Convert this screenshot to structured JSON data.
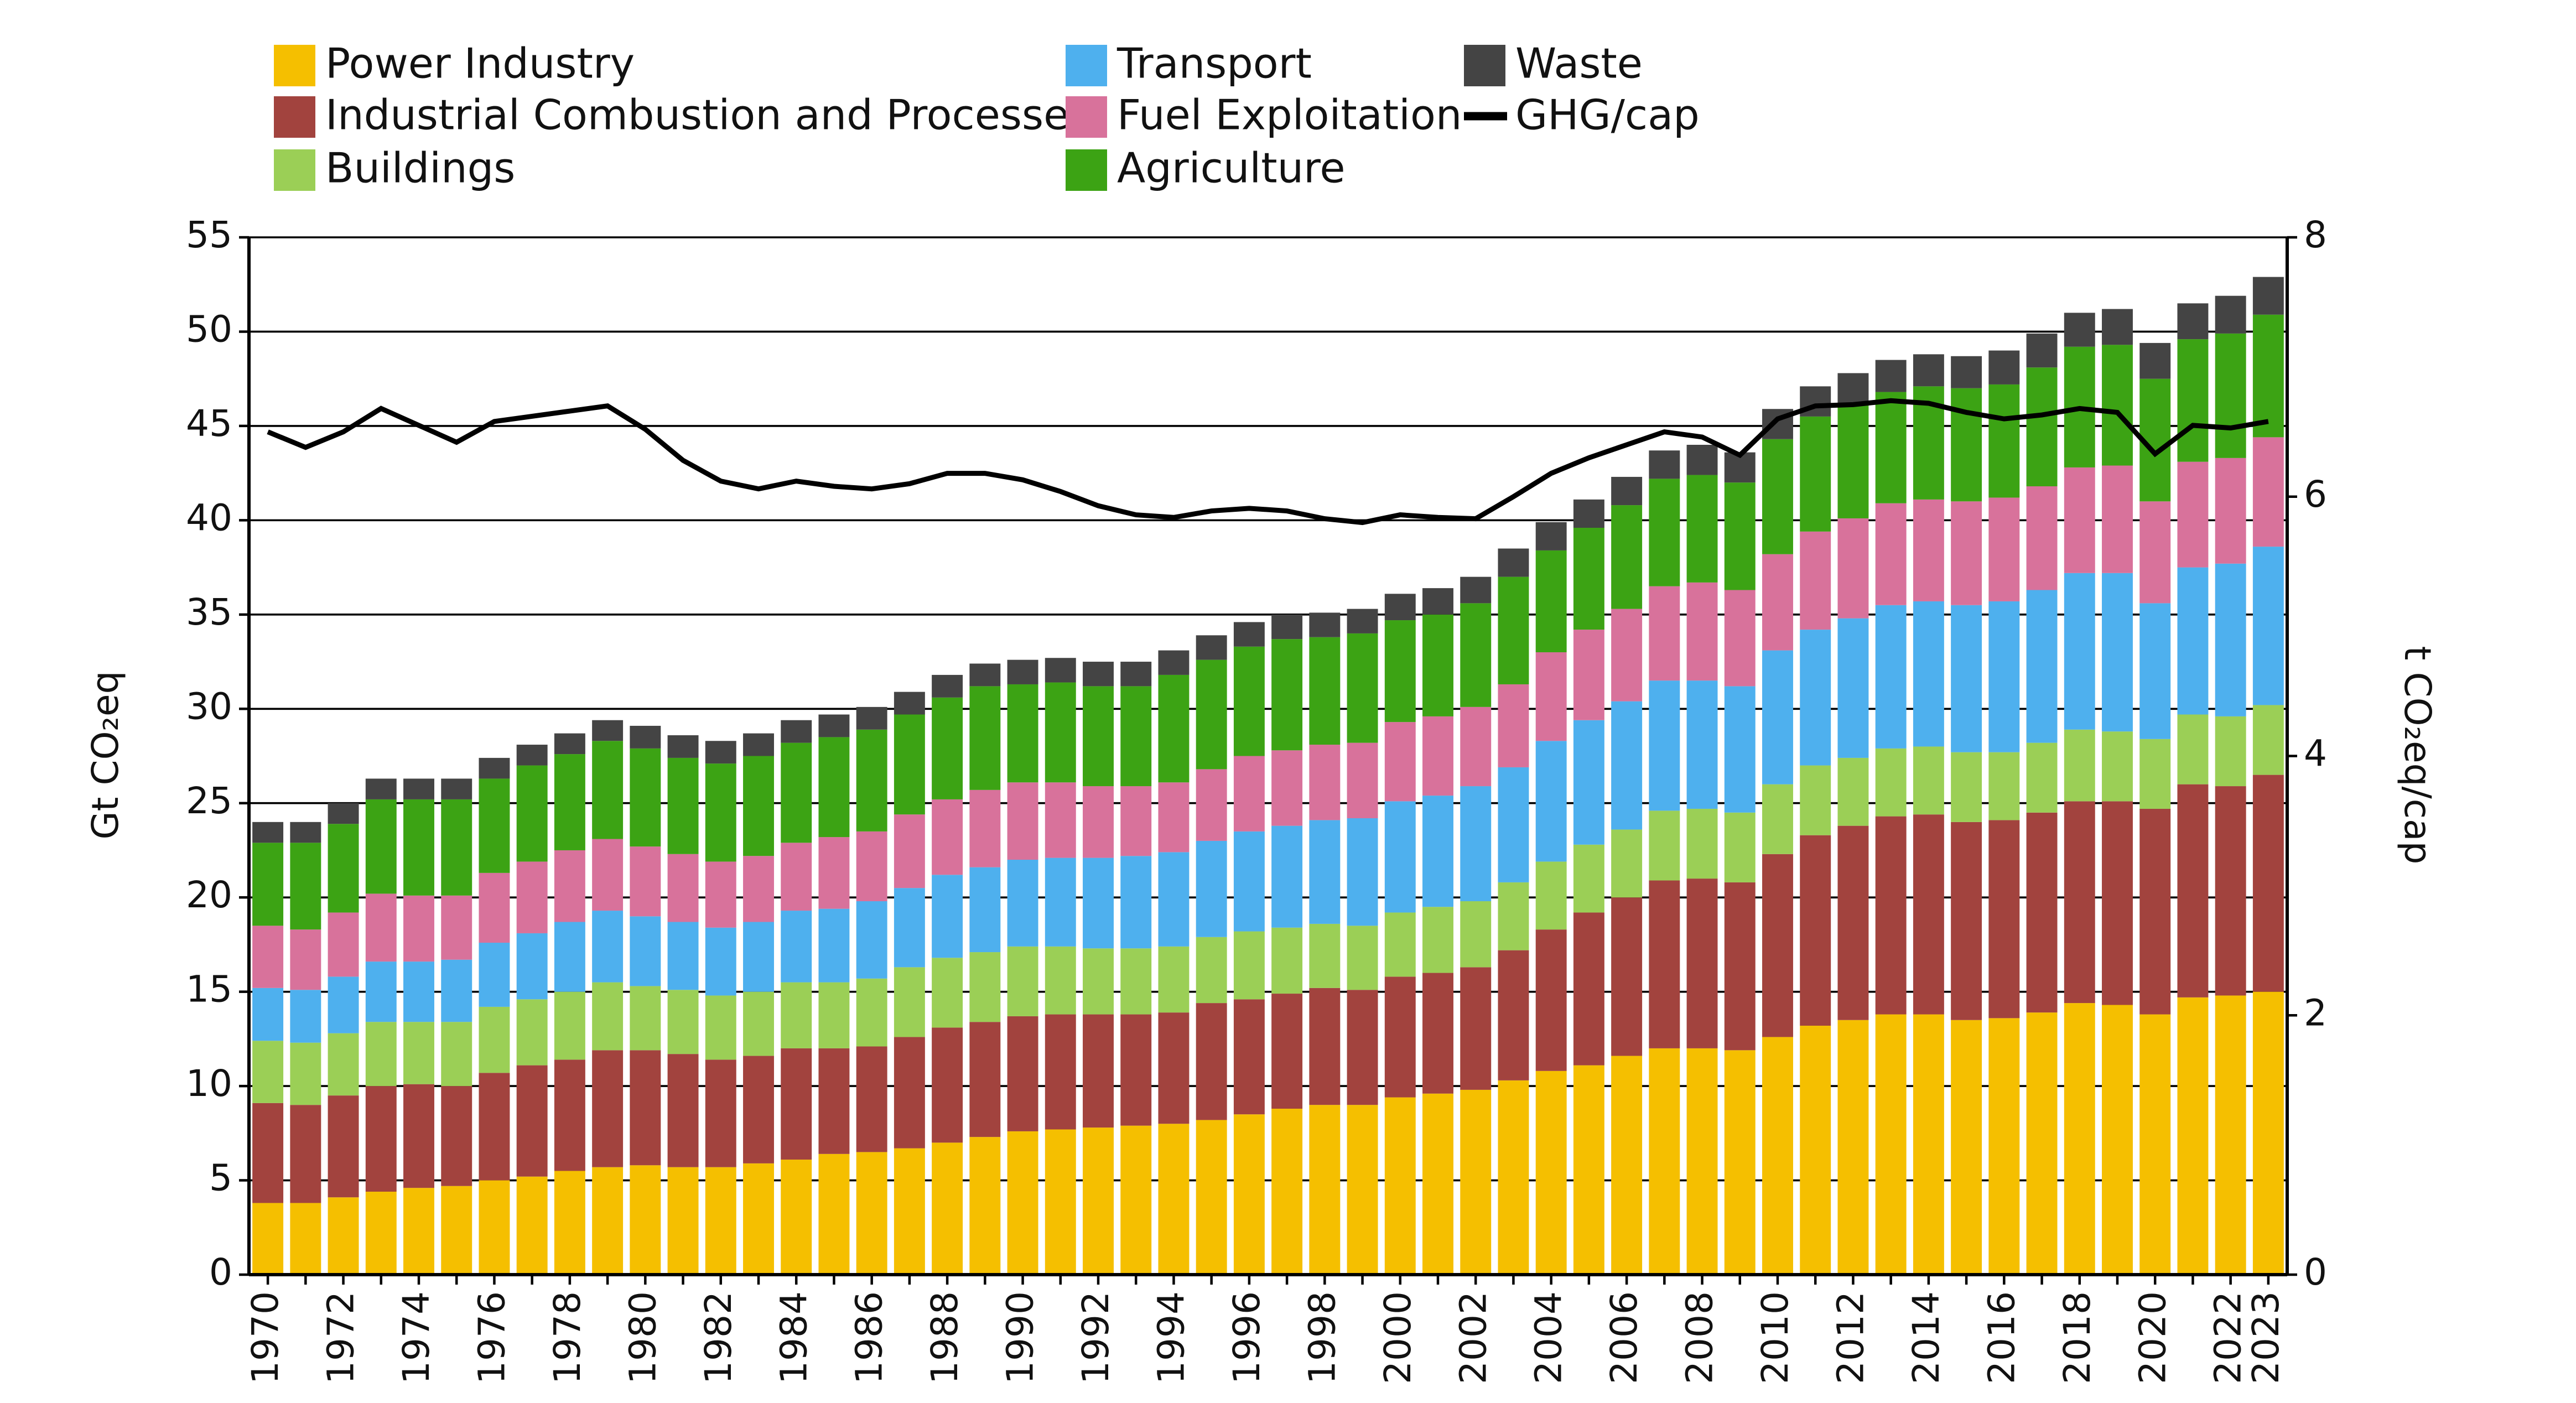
{
  "chart_data": {
    "type": "bar",
    "stacked": true,
    "legend": "top",
    "grid": true,
    "y_label": "Gt CO₂eq",
    "y2_label": "t CO₂eq/cap",
    "ylim": [
      0,
      55
    ],
    "yticks": [
      0,
      5,
      10,
      15,
      20,
      25,
      30,
      35,
      40,
      45,
      50,
      55
    ],
    "y2lim": [
      0,
      8
    ],
    "y2ticks": [
      0,
      2,
      4,
      6,
      8
    ],
    "categories": [
      "1970",
      null,
      "1972",
      null,
      "1974",
      null,
      "1976",
      null,
      "1978",
      null,
      "1980",
      null,
      "1982",
      null,
      "1984",
      null,
      "1986",
      null,
      "1988",
      null,
      "1990",
      null,
      "1992",
      null,
      "1994",
      null,
      "1996",
      null,
      "1998",
      null,
      "2000",
      null,
      "2002",
      null,
      "2004",
      null,
      "2006",
      null,
      "2008",
      null,
      "2010",
      null,
      "2012",
      null,
      "2014",
      null,
      "2016",
      null,
      "2018",
      null,
      "2020",
      null,
      "2022",
      "2023"
    ],
    "series": [
      {
        "name": "Power Industry",
        "color": "#f5bf00",
        "values": [
          3.8,
          3.8,
          4.1,
          4.4,
          4.6,
          4.7,
          5.0,
          5.2,
          5.5,
          5.7,
          5.8,
          5.7,
          5.7,
          5.9,
          6.1,
          6.4,
          6.5,
          6.7,
          7.0,
          7.3,
          7.6,
          7.7,
          7.8,
          7.9,
          8.0,
          8.2,
          8.5,
          8.8,
          9.0,
          9.0,
          9.4,
          9.6,
          9.8,
          10.3,
          10.8,
          11.1,
          11.6,
          12.0,
          12.0,
          11.9,
          12.6,
          13.2,
          13.5,
          13.8,
          13.8,
          13.5,
          13.6,
          13.9,
          14.4,
          14.3,
          13.8,
          14.7,
          14.8,
          15.0
        ]
      },
      {
        "name": "Industrial Combustion and Processes",
        "color": "#a2433e",
        "values": [
          5.3,
          5.2,
          5.4,
          5.6,
          5.5,
          5.3,
          5.7,
          5.9,
          5.9,
          6.2,
          6.1,
          6.0,
          5.7,
          5.7,
          5.9,
          5.6,
          5.6,
          5.9,
          6.1,
          6.1,
          6.1,
          6.1,
          6.0,
          5.9,
          5.9,
          6.2,
          6.1,
          6.1,
          6.2,
          6.1,
          6.4,
          6.4,
          6.5,
          6.9,
          7.5,
          8.1,
          8.4,
          8.9,
          9.0,
          8.9,
          9.7,
          10.1,
          10.3,
          10.5,
          10.6,
          10.5,
          10.5,
          10.6,
          10.7,
          10.8,
          10.9,
          11.3,
          11.1,
          11.5
        ]
      },
      {
        "name": "Buildings",
        "color": "#9bcf56",
        "values": [
          3.3,
          3.3,
          3.3,
          3.4,
          3.3,
          3.4,
          3.5,
          3.5,
          3.6,
          3.6,
          3.4,
          3.4,
          3.4,
          3.4,
          3.5,
          3.5,
          3.6,
          3.7,
          3.7,
          3.7,
          3.7,
          3.6,
          3.5,
          3.5,
          3.5,
          3.5,
          3.6,
          3.5,
          3.4,
          3.4,
          3.4,
          3.5,
          3.5,
          3.6,
          3.6,
          3.6,
          3.6,
          3.7,
          3.7,
          3.7,
          3.7,
          3.7,
          3.6,
          3.6,
          3.6,
          3.7,
          3.6,
          3.7,
          3.8,
          3.7,
          3.7,
          3.7,
          3.7,
          3.7
        ]
      },
      {
        "name": "Transport",
        "color": "#4eb0ee",
        "values": [
          2.8,
          2.8,
          3.0,
          3.2,
          3.2,
          3.3,
          3.4,
          3.5,
          3.7,
          3.8,
          3.7,
          3.6,
          3.6,
          3.7,
          3.8,
          3.9,
          4.1,
          4.2,
          4.4,
          4.5,
          4.6,
          4.7,
          4.8,
          4.9,
          5.0,
          5.1,
          5.3,
          5.4,
          5.5,
          5.7,
          5.9,
          5.9,
          6.1,
          6.1,
          6.4,
          6.6,
          6.8,
          6.9,
          6.8,
          6.7,
          7.1,
          7.2,
          7.4,
          7.6,
          7.7,
          7.8,
          8.0,
          8.1,
          8.3,
          8.4,
          7.2,
          7.8,
          8.1,
          8.4
        ]
      },
      {
        "name": "Fuel Exploitation",
        "color": "#d8729b",
        "values": [
          3.3,
          3.2,
          3.4,
          3.6,
          3.5,
          3.4,
          3.7,
          3.8,
          3.8,
          3.8,
          3.7,
          3.6,
          3.5,
          3.5,
          3.6,
          3.8,
          3.7,
          3.9,
          4.0,
          4.1,
          4.1,
          4.0,
          3.8,
          3.7,
          3.7,
          3.8,
          4.0,
          4.0,
          4.0,
          4.0,
          4.2,
          4.2,
          4.2,
          4.4,
          4.7,
          4.8,
          4.9,
          5.0,
          5.2,
          5.1,
          5.1,
          5.2,
          5.3,
          5.4,
          5.4,
          5.5,
          5.5,
          5.5,
          5.6,
          5.7,
          5.4,
          5.6,
          5.6,
          5.8
        ]
      },
      {
        "name": "Agriculture",
        "color": "#3ca314",
        "values": [
          4.4,
          4.6,
          4.7,
          5.0,
          5.1,
          5.1,
          5.0,
          5.1,
          5.1,
          5.2,
          5.2,
          5.1,
          5.2,
          5.3,
          5.3,
          5.3,
          5.4,
          5.3,
          5.4,
          5.5,
          5.2,
          5.3,
          5.3,
          5.3,
          5.7,
          5.8,
          5.8,
          5.9,
          5.7,
          5.8,
          5.4,
          5.4,
          5.5,
          5.7,
          5.4,
          5.4,
          5.5,
          5.7,
          5.7,
          5.7,
          6.1,
          6.1,
          6.0,
          5.9,
          6.0,
          6.0,
          6.0,
          6.3,
          6.4,
          6.4,
          6.5,
          6.5,
          6.6,
          6.5
        ]
      },
      {
        "name": "Waste",
        "color": "#444444",
        "values": [
          1.1,
          1.1,
          1.1,
          1.1,
          1.1,
          1.1,
          1.1,
          1.1,
          1.1,
          1.1,
          1.2,
          1.2,
          1.2,
          1.2,
          1.2,
          1.2,
          1.2,
          1.2,
          1.2,
          1.2,
          1.3,
          1.3,
          1.3,
          1.3,
          1.3,
          1.3,
          1.3,
          1.3,
          1.3,
          1.3,
          1.4,
          1.4,
          1.4,
          1.5,
          1.5,
          1.5,
          1.5,
          1.5,
          1.6,
          1.6,
          1.6,
          1.6,
          1.7,
          1.7,
          1.7,
          1.7,
          1.8,
          1.8,
          1.8,
          1.9,
          1.9,
          1.9,
          2.0,
          2.0
        ]
      },
      {
        "name": "GHG/cap",
        "color": "#000000",
        "type": "line",
        "axis": "y2",
        "values": [
          6.5,
          6.38,
          6.5,
          6.68,
          6.55,
          6.42,
          6.58,
          6.62,
          6.66,
          6.7,
          6.52,
          6.28,
          6.12,
          6.06,
          6.12,
          6.08,
          6.06,
          6.1,
          6.18,
          6.18,
          6.13,
          6.04,
          5.93,
          5.86,
          5.84,
          5.89,
          5.91,
          5.89,
          5.83,
          5.8,
          5.86,
          5.84,
          5.83,
          6.0,
          6.18,
          6.3,
          6.4,
          6.5,
          6.46,
          6.32,
          6.6,
          6.7,
          6.71,
          6.74,
          6.72,
          6.65,
          6.6,
          6.63,
          6.68,
          6.65,
          6.33,
          6.55,
          6.53,
          6.58
        ]
      }
    ]
  }
}
